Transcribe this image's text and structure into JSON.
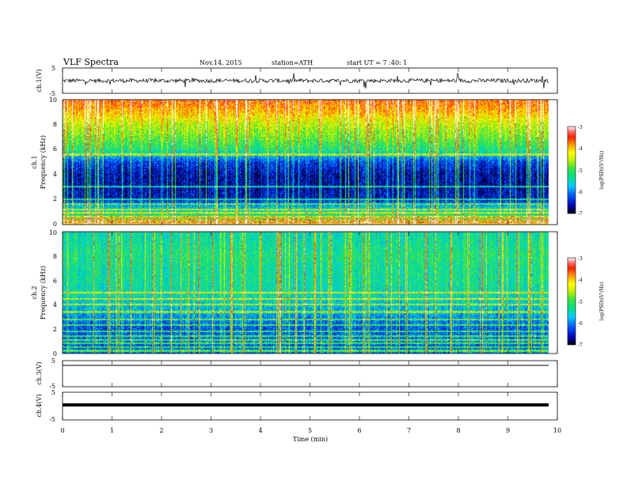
{
  "header": {
    "title": "VLF  Spectra",
    "date": "Nov.14, 2015",
    "station": "station=ATH",
    "start": "start  UT  =   7 :40: 1"
  },
  "chart_data": {
    "type": "heatmap",
    "x_axis": {
      "label": "Time  (min)",
      "range": [
        0,
        10
      ],
      "ticks": [
        "0",
        "1",
        "2",
        "3",
        "4",
        "5",
        "6",
        "7",
        "8",
        "9",
        "10"
      ]
    },
    "waveforms": [
      {
        "label": "ch.1(V)",
        "ylim": [
          -5,
          5
        ],
        "ticks": [
          "5",
          "-5"
        ],
        "description": "noisy signal, amplitude ~ +/-1.5 V with spikes"
      },
      {
        "label": "ch.3(V)",
        "ylim": [
          -5,
          5
        ],
        "ticks": [
          "5",
          "-5"
        ],
        "description": "flat line near +2 V"
      },
      {
        "label": "ch.4(V)",
        "ylim": [
          -5,
          5
        ],
        "ticks": [
          "5",
          "-5"
        ],
        "description": "thick flat line near 0 V"
      }
    ],
    "spectrograms": [
      {
        "channel_label": "ch.1",
        "ylabel": "Frequency (kHz)",
        "ylim": [
          0,
          10
        ],
        "yticks": [
          "0",
          "2",
          "4",
          "6",
          "8",
          "10"
        ],
        "profile_khz_vs_logpsd": [
          [
            0,
            -4.2
          ],
          [
            0.5,
            -5.0
          ],
          [
            1,
            -5.5
          ],
          [
            1.5,
            -5.8
          ],
          [
            2,
            -6.5
          ],
          [
            3,
            -6.6
          ],
          [
            4,
            -6.6
          ],
          [
            5,
            -6.3
          ],
          [
            6,
            -5.2
          ],
          [
            7,
            -4.8
          ],
          [
            8,
            -4.5
          ],
          [
            9,
            -4.0
          ],
          [
            10,
            -3.6
          ]
        ]
      },
      {
        "channel_label": "ch.2",
        "ylabel": "Frequency (kHz)",
        "ylim": [
          0,
          10
        ],
        "yticks": [
          "0",
          "2",
          "4",
          "6",
          "8",
          "10"
        ],
        "profile_khz_vs_logpsd": [
          [
            0,
            -6.0
          ],
          [
            0.5,
            -6.2
          ],
          [
            1,
            -6.0
          ],
          [
            1.5,
            -6.1
          ],
          [
            2,
            -6.2
          ],
          [
            3,
            -5.9
          ],
          [
            4,
            -5.6
          ],
          [
            5,
            -5.4
          ],
          [
            6,
            -5.3
          ],
          [
            7,
            -5.3
          ],
          [
            8,
            -5.2
          ],
          [
            9,
            -5.3
          ],
          [
            10,
            -5.4
          ]
        ]
      }
    ],
    "colorbar": {
      "label": "log(PSD)(V²/Hz)",
      "range": [
        -7,
        -3
      ],
      "ticks": [
        "-3",
        "-4",
        "-5",
        "-6",
        "-7"
      ],
      "colors": [
        "#000000",
        "#0000a8",
        "#0050ff",
        "#00ccff",
        "#00e08a",
        "#3ee33e",
        "#c8f000",
        "#ffff00",
        "#ff9000",
        "#ff2000",
        "#ff8080",
        "#ffffff"
      ]
    }
  }
}
